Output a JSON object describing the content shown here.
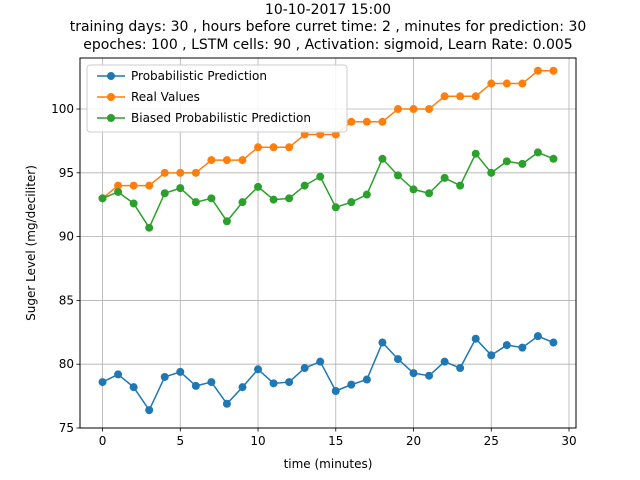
{
  "chart_data": {
    "type": "line",
    "title_lines": [
      "10-10-2017 15:00",
      "training days: 30 , hours before curret time: 2 , minutes for prediction: 30",
      "epoches: 100 , LSTM cells: 90 , Activation: sigmoid, Learn Rate: 0.005"
    ],
    "xlabel": "time (minutes)",
    "ylabel": "Suger Level (mg/deciliter)",
    "xlim": [
      -1.45,
      30.45
    ],
    "ylim": [
      75,
      104
    ],
    "xticks": [
      0,
      5,
      10,
      15,
      20,
      25,
      30
    ],
    "yticks": [
      75,
      80,
      85,
      90,
      95,
      100
    ],
    "grid": true,
    "legend_position": "upper-left",
    "x": [
      0,
      1,
      2,
      3,
      4,
      5,
      6,
      7,
      8,
      9,
      10,
      11,
      12,
      13,
      14,
      15,
      16,
      17,
      18,
      19,
      20,
      21,
      22,
      23,
      24,
      25,
      26,
      27,
      28,
      29
    ],
    "series": [
      {
        "name": "Probabilistic Prediction",
        "color": "#1f77b4",
        "values": [
          78.6,
          79.2,
          78.2,
          76.4,
          79.0,
          79.4,
          78.3,
          78.6,
          76.9,
          78.2,
          79.6,
          78.5,
          78.6,
          79.7,
          80.2,
          77.9,
          78.4,
          78.8,
          81.7,
          80.4,
          79.3,
          79.1,
          80.2,
          79.7,
          82.0,
          80.7,
          81.5,
          81.3,
          82.2,
          81.7
        ]
      },
      {
        "name": "Real Values",
        "color": "#ff7f0e",
        "values": [
          93,
          94,
          94,
          94,
          95,
          95,
          95,
          96,
          96,
          96,
          97,
          97,
          97,
          98,
          98,
          98,
          99,
          99,
          99,
          100,
          100,
          100,
          101,
          101,
          101,
          102,
          102,
          102,
          103,
          103
        ]
      },
      {
        "name": "Biased Probabilistic Prediction",
        "color": "#2ca02c",
        "values": [
          93.0,
          93.5,
          92.6,
          90.7,
          93.4,
          93.8,
          92.7,
          93.0,
          91.2,
          92.7,
          93.9,
          92.9,
          93.0,
          94.0,
          94.7,
          92.3,
          92.7,
          93.3,
          96.1,
          94.8,
          93.7,
          93.4,
          94.6,
          94.0,
          96.5,
          95.0,
          95.9,
          95.7,
          96.6,
          96.1
        ]
      }
    ]
  }
}
